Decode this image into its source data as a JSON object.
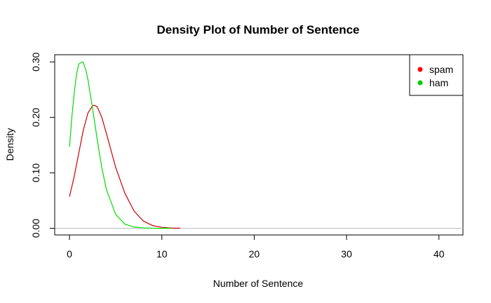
{
  "chart_data": {
    "type": "line",
    "title": "Density Plot of Number of Sentence",
    "xlabel": "Number of Sentence",
    "ylabel": "Density",
    "xlim": [
      -1.6,
      42.6
    ],
    "ylim": [
      -0.012,
      0.313
    ],
    "xticks": [
      0,
      10,
      20,
      30,
      40
    ],
    "yticks": [
      0.0,
      0.1,
      0.2,
      0.3
    ],
    "xtick_labels": [
      "0",
      "10",
      "20",
      "30",
      "40"
    ],
    "ytick_labels": [
      "0.00",
      "0.10",
      "0.20",
      "0.30"
    ],
    "grid": false,
    "legend": {
      "placement": "top-right",
      "entries": [
        {
          "name": "spam",
          "color": "#ff0000"
        },
        {
          "name": "ham",
          "color": "#00cc00"
        }
      ]
    },
    "series": [
      {
        "name": "spam",
        "color": "#cc0000",
        "x": [
          0,
          0.5,
          1,
          1.5,
          2,
          2.5,
          2.7,
          3,
          3.5,
          4,
          5,
          6,
          7,
          8,
          9,
          10,
          11,
          12
        ],
        "y": [
          0.057,
          0.093,
          0.135,
          0.177,
          0.208,
          0.221,
          0.222,
          0.219,
          0.2,
          0.171,
          0.11,
          0.063,
          0.031,
          0.013,
          0.005,
          0.0017,
          0.0005,
          0.0001
        ]
      },
      {
        "name": "ham",
        "color": "#00dd00",
        "x": [
          0,
          0.25,
          0.5,
          0.75,
          1,
          1.25,
          1.45,
          1.75,
          2,
          2.5,
          3,
          3.5,
          4,
          5,
          6,
          7,
          8,
          9,
          10,
          11
        ],
        "y": [
          0.147,
          0.2,
          0.243,
          0.276,
          0.296,
          0.299,
          0.3,
          0.287,
          0.268,
          0.216,
          0.16,
          0.109,
          0.07,
          0.025,
          0.0075,
          0.0022,
          0.0006,
          0.0002,
          5e-05,
          1e-05
        ]
      }
    ]
  }
}
